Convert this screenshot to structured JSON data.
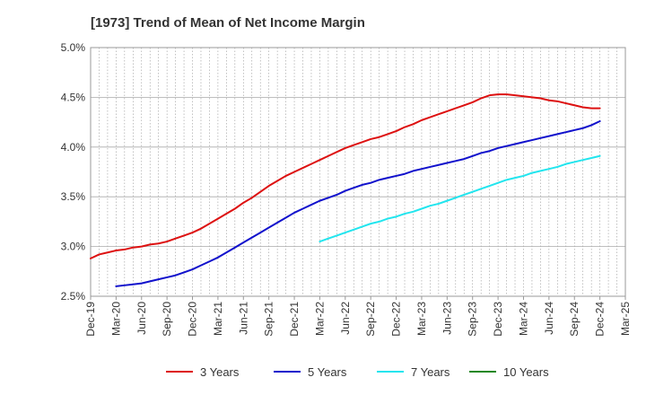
{
  "chart_data": {
    "type": "line",
    "title": "[1973]  Trend of Mean of Net Income Margin",
    "xlabel": "",
    "ylabel": "",
    "ylim": [
      2.5,
      5.0
    ],
    "y_ticks": [
      "2.5%",
      "3.0%",
      "3.5%",
      "4.0%",
      "4.5%",
      "5.0%"
    ],
    "x_ticks": [
      "Dec-19",
      "Mar-20",
      "Jun-20",
      "Sep-20",
      "Dec-20",
      "Mar-21",
      "Jun-21",
      "Sep-21",
      "Dec-21",
      "Mar-22",
      "Jun-22",
      "Sep-22",
      "Dec-22",
      "Mar-23",
      "Jun-23",
      "Sep-23",
      "Dec-23",
      "Mar-24",
      "Jun-24",
      "Sep-24",
      "Dec-24",
      "Mar-25"
    ],
    "grid": "vertical-dotted, horizontal-solid",
    "legend_position": "bottom",
    "series": [
      {
        "name": "3 Years",
        "color": "#dd1111",
        "x": [
          "Dec-19",
          "Jan-20",
          "Feb-20",
          "Mar-20",
          "Apr-20",
          "May-20",
          "Jun-20",
          "Jul-20",
          "Aug-20",
          "Sep-20",
          "Oct-20",
          "Nov-20",
          "Dec-20",
          "Jan-21",
          "Feb-21",
          "Mar-21",
          "Apr-21",
          "May-21",
          "Jun-21",
          "Jul-21",
          "Aug-21",
          "Sep-21",
          "Oct-21",
          "Nov-21",
          "Dec-21",
          "Jan-22",
          "Feb-22",
          "Mar-22",
          "Apr-22",
          "May-22",
          "Jun-22",
          "Jul-22",
          "Aug-22",
          "Sep-22",
          "Oct-22",
          "Nov-22",
          "Dec-22",
          "Jan-23",
          "Feb-23",
          "Mar-23",
          "Apr-23",
          "May-23",
          "Jun-23",
          "Jul-23",
          "Aug-23",
          "Sep-23",
          "Oct-23",
          "Nov-23",
          "Dec-23",
          "Jan-24",
          "Feb-24",
          "Mar-24",
          "Apr-24",
          "May-24",
          "Jun-24",
          "Jul-24",
          "Aug-24",
          "Sep-24",
          "Oct-24",
          "Nov-24",
          "Dec-24"
        ],
        "values": [
          2.88,
          2.92,
          2.94,
          2.96,
          2.97,
          2.99,
          3.0,
          3.02,
          3.03,
          3.05,
          3.08,
          3.11,
          3.14,
          3.18,
          3.23,
          3.28,
          3.33,
          3.38,
          3.44,
          3.49,
          3.55,
          3.61,
          3.66,
          3.71,
          3.75,
          3.79,
          3.83,
          3.87,
          3.91,
          3.95,
          3.99,
          4.02,
          4.05,
          4.08,
          4.1,
          4.13,
          4.16,
          4.2,
          4.23,
          4.27,
          4.3,
          4.33,
          4.36,
          4.39,
          4.42,
          4.45,
          4.49,
          4.52,
          4.53,
          4.53,
          4.52,
          4.51,
          4.5,
          4.49,
          4.47,
          4.46,
          4.44,
          4.42,
          4.4,
          4.39,
          4.39
        ]
      },
      {
        "name": "5 Years",
        "color": "#1111cc",
        "x": [
          "Mar-20",
          "Apr-20",
          "May-20",
          "Jun-20",
          "Jul-20",
          "Aug-20",
          "Sep-20",
          "Oct-20",
          "Nov-20",
          "Dec-20",
          "Jan-21",
          "Feb-21",
          "Mar-21",
          "Apr-21",
          "May-21",
          "Jun-21",
          "Jul-21",
          "Aug-21",
          "Sep-21",
          "Oct-21",
          "Nov-21",
          "Dec-21",
          "Jan-22",
          "Feb-22",
          "Mar-22",
          "Apr-22",
          "May-22",
          "Jun-22",
          "Jul-22",
          "Aug-22",
          "Sep-22",
          "Oct-22",
          "Nov-22",
          "Dec-22",
          "Jan-23",
          "Feb-23",
          "Mar-23",
          "Apr-23",
          "May-23",
          "Jun-23",
          "Jul-23",
          "Aug-23",
          "Sep-23",
          "Oct-23",
          "Nov-23",
          "Dec-23",
          "Jan-24",
          "Feb-24",
          "Mar-24",
          "Apr-24",
          "May-24",
          "Jun-24",
          "Jul-24",
          "Aug-24",
          "Sep-24",
          "Oct-24",
          "Nov-24",
          "Dec-24"
        ],
        "values": [
          2.6,
          2.61,
          2.62,
          2.63,
          2.65,
          2.67,
          2.69,
          2.71,
          2.74,
          2.77,
          2.81,
          2.85,
          2.89,
          2.94,
          2.99,
          3.04,
          3.09,
          3.14,
          3.19,
          3.24,
          3.29,
          3.34,
          3.38,
          3.42,
          3.46,
          3.49,
          3.52,
          3.56,
          3.59,
          3.62,
          3.64,
          3.67,
          3.69,
          3.71,
          3.73,
          3.76,
          3.78,
          3.8,
          3.82,
          3.84,
          3.86,
          3.88,
          3.91,
          3.94,
          3.96,
          3.99,
          4.01,
          4.03,
          4.05,
          4.07,
          4.09,
          4.11,
          4.13,
          4.15,
          4.17,
          4.19,
          4.22,
          4.26
        ]
      },
      {
        "name": "7 Years",
        "color": "#22e5ee",
        "x": [
          "Mar-22",
          "Apr-22",
          "May-22",
          "Jun-22",
          "Jul-22",
          "Aug-22",
          "Sep-22",
          "Oct-22",
          "Nov-22",
          "Dec-22",
          "Jan-23",
          "Feb-23",
          "Mar-23",
          "Apr-23",
          "May-23",
          "Jun-23",
          "Jul-23",
          "Aug-23",
          "Sep-23",
          "Oct-23",
          "Nov-23",
          "Dec-23",
          "Jan-24",
          "Feb-24",
          "Mar-24",
          "Apr-24",
          "May-24",
          "Jun-24",
          "Jul-24",
          "Aug-24",
          "Sep-24",
          "Oct-24",
          "Nov-24",
          "Dec-24"
        ],
        "values": [
          3.05,
          3.08,
          3.11,
          3.14,
          3.17,
          3.2,
          3.23,
          3.25,
          3.28,
          3.3,
          3.33,
          3.35,
          3.38,
          3.41,
          3.43,
          3.46,
          3.49,
          3.52,
          3.55,
          3.58,
          3.61,
          3.64,
          3.67,
          3.69,
          3.71,
          3.74,
          3.76,
          3.78,
          3.8,
          3.83,
          3.85,
          3.87,
          3.89,
          3.91
        ]
      },
      {
        "name": "10 Years",
        "color": "#228822",
        "x": [],
        "values": []
      }
    ]
  }
}
